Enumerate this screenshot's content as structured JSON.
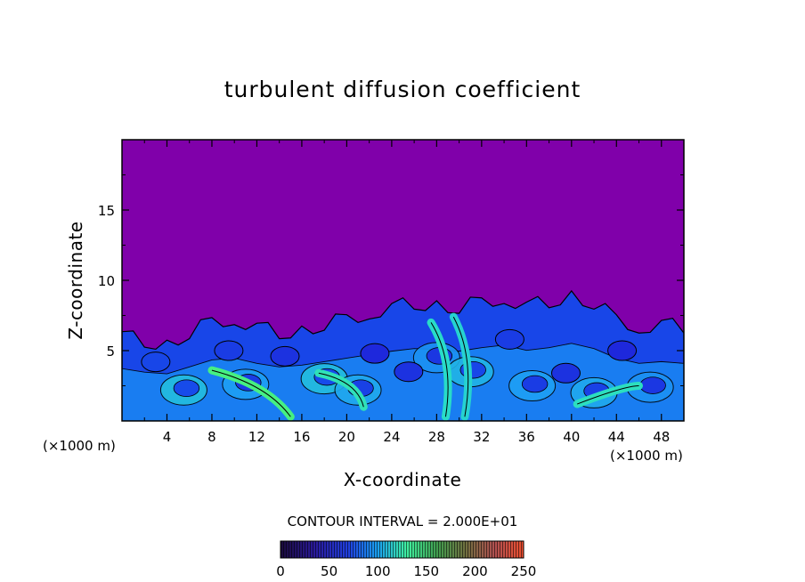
{
  "chart_data": {
    "type": "heatmap",
    "title": "turbulent diffusion coefficient",
    "xlabel": "X-coordinate",
    "ylabel": "Z-coordinate",
    "x_unit": "(×1000 m)",
    "y_unit": "(×1000 m)",
    "xlim": [
      0,
      50
    ],
    "ylim": [
      0,
      20
    ],
    "x_ticks": [
      4,
      8,
      12,
      16,
      20,
      24,
      28,
      32,
      36,
      40,
      44,
      48
    ],
    "y_ticks": [
      5,
      10,
      15
    ],
    "contour_interval_text": "CONTOUR INTERVAL = 2.000E+01",
    "colorbar": {
      "range": [
        0,
        250
      ],
      "ticks": [
        0,
        50,
        100,
        150,
        200,
        250
      ]
    },
    "background_value": 0,
    "top_profile": [
      [
        0,
        6.0
      ],
      [
        2,
        5.6
      ],
      [
        4,
        5.4
      ],
      [
        6,
        6.2
      ],
      [
        8,
        7.0
      ],
      [
        10,
        7.2
      ],
      [
        12,
        6.6
      ],
      [
        14,
        6.2
      ],
      [
        16,
        6.4
      ],
      [
        18,
        6.8
      ],
      [
        20,
        7.2
      ],
      [
        22,
        7.6
      ],
      [
        24,
        8.0
      ],
      [
        26,
        8.3
      ],
      [
        28,
        8.2
      ],
      [
        30,
        8.0
      ],
      [
        32,
        8.4
      ],
      [
        34,
        8.7
      ],
      [
        36,
        8.1
      ],
      [
        38,
        8.4
      ],
      [
        40,
        8.9
      ],
      [
        42,
        8.3
      ],
      [
        44,
        7.2
      ],
      [
        46,
        6.6
      ],
      [
        48,
        6.8
      ],
      [
        50,
        6.6
      ]
    ],
    "structures": [
      {
        "shape": "swirl",
        "cx": 5.5,
        "cz": 2.2,
        "value": 95
      },
      {
        "shape": "swirl",
        "cx": 11,
        "cz": 2.6,
        "value": 80
      },
      {
        "shape": "swirl",
        "cx": 18,
        "cz": 3.0,
        "value": 95
      },
      {
        "shape": "swirl",
        "cx": 21,
        "cz": 2.2,
        "value": 85
      },
      {
        "shape": "swirl",
        "cx": 28,
        "cz": 4.5,
        "value": 75
      },
      {
        "shape": "swirl",
        "cx": 31,
        "cz": 3.5,
        "value": 90
      },
      {
        "shape": "swirl",
        "cx": 36.5,
        "cz": 2.5,
        "value": 80
      },
      {
        "shape": "swirl",
        "cx": 42,
        "cz": 2.0,
        "value": 85
      },
      {
        "shape": "swirl",
        "cx": 47,
        "cz": 2.4,
        "value": 75
      },
      {
        "shape": "band",
        "x0": 8,
        "z0": 3.6,
        "x1": 15,
        "z1": 0.3,
        "value": 150
      },
      {
        "shape": "band",
        "x0": 17.5,
        "z0": 3.4,
        "x1": 21.5,
        "z1": 1.0,
        "value": 120
      },
      {
        "shape": "band",
        "x0": 40.5,
        "z0": 1.2,
        "x1": 46,
        "z1": 2.5,
        "value": 115
      },
      {
        "shape": "band",
        "x0": 27.5,
        "z0": 7.0,
        "x1": 28.8,
        "z1": 0.3,
        "value": 110
      },
      {
        "shape": "band",
        "x0": 29.5,
        "z0": 7.4,
        "x1": 30.5,
        "z1": 0.3,
        "value": 105
      },
      {
        "shape": "blob",
        "cx": 9.5,
        "cz": 5.0,
        "value": 40
      },
      {
        "shape": "blob",
        "cx": 14.5,
        "cz": 4.6,
        "value": 35
      },
      {
        "shape": "blob",
        "cx": 22.5,
        "cz": 4.8,
        "value": 30
      },
      {
        "shape": "blob",
        "cx": 25.5,
        "cz": 3.5,
        "value": 35
      },
      {
        "shape": "blob",
        "cx": 34.5,
        "cz": 5.8,
        "value": 40
      },
      {
        "shape": "blob",
        "cx": 39.5,
        "cz": 3.4,
        "value": 35
      },
      {
        "shape": "blob",
        "cx": 44.5,
        "cz": 5.0,
        "value": 30
      },
      {
        "shape": "blob",
        "cx": 3.0,
        "cz": 4.2,
        "value": 45
      }
    ]
  }
}
